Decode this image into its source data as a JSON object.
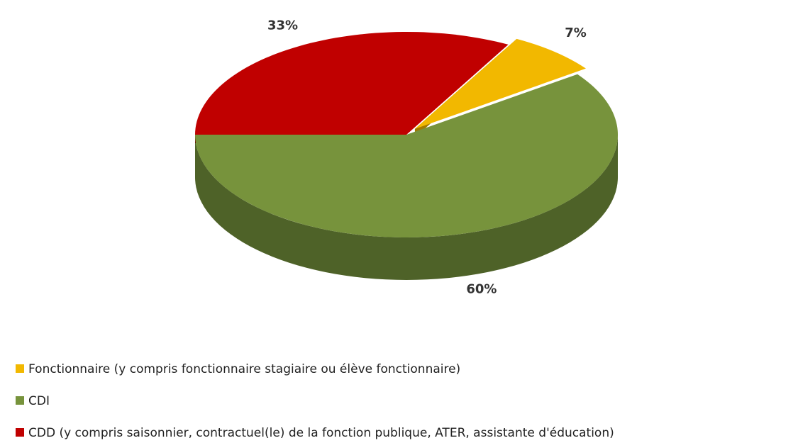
{
  "chart_data": {
    "type": "pie",
    "categories": [
      "Fonctionnaire (y compris fonctionnaire stagiaire ou élève fonctionnaire)",
      "CDI",
      "CDD (y compris saisonnier, contractuel(le) de la fonction publique, ATER, assistante d'éducation)"
    ],
    "values": [
      7,
      60,
      33
    ],
    "value_labels": [
      "7%",
      "60%",
      "33%"
    ],
    "colors": [
      "#f2b800",
      "#77933c",
      "#c00000"
    ],
    "side_colors": [
      "#a07a00",
      "#4e6228",
      "#6e0000"
    ],
    "legend": "bottom"
  }
}
